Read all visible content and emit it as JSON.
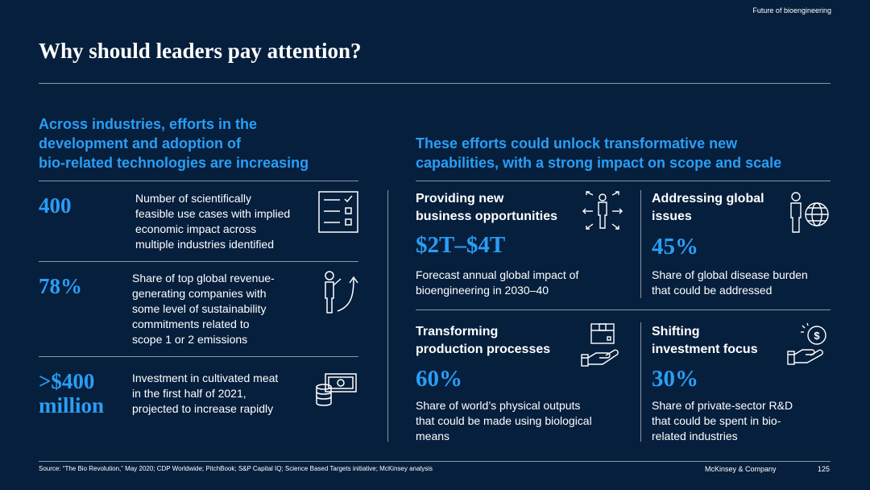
{
  "header": {
    "tag": "Future of bioengineering",
    "title": "Why should leaders pay attention?"
  },
  "left": {
    "heading": [
      "Across industries, efforts in the",
      "development and adoption of",
      "bio-related technologies are increasing"
    ],
    "items": [
      {
        "value": "400",
        "text": [
          "Number of scientifically",
          "feasible use cases with implied",
          "economic impact across",
          "multiple industries identified"
        ],
        "icon": "checklist-icon"
      },
      {
        "value": "78%",
        "text": [
          "Share of top global revenue-",
          "generating companies with",
          "some level of sustainability",
          "commitments related to",
          "scope 1 or 2 emissions"
        ],
        "icon": "person-growth-icon"
      },
      {
        "value": ">$400",
        "value2": "million",
        "text": [
          "Investment in cultivated meat",
          "in the first half of 2021,",
          "projected to increase rapidly"
        ],
        "icon": "money-coins-icon"
      }
    ]
  },
  "right": {
    "heading": [
      "These efforts could unlock transformative new",
      "capabilities, with a strong impact on scope and scale"
    ],
    "cards": [
      {
        "title": [
          "Providing new",
          "business opportunities"
        ],
        "value": "$2T–$4T",
        "text": [
          "Forecast annual global impact of",
          "bioengineering in 2030–40"
        ],
        "icon": "person-arrows-icon"
      },
      {
        "title": [
          "Addressing global",
          "issues"
        ],
        "value": "45%",
        "text": [
          "Share of global disease burden",
          "that could be addressed"
        ],
        "icon": "person-globe-icon"
      },
      {
        "title": [
          "Transforming",
          "production processes"
        ],
        "value": "60%",
        "text": [
          "Share of world’s physical outputs",
          "that could be made using biological",
          "means"
        ],
        "icon": "hand-box-icon"
      },
      {
        "title": [
          "Shifting",
          "investment focus"
        ],
        "value": "30%",
        "text": [
          "Share of private-sector R&D",
          "that could be spent in bio-",
          "related industries"
        ],
        "icon": "hand-coin-icon"
      }
    ]
  },
  "footer": {
    "source": "Source: “The Bio Revolution,” May 2020; CDP Worldwide; PitchBook; S&P Capital IQ; Science Based Targets initiative; McKinsey analysis",
    "brand": "McKinsey & Company",
    "page": "125"
  },
  "colors": {
    "background": "#061f3d",
    "accent": "#2a9ef5",
    "rule": "#8a96a6"
  }
}
